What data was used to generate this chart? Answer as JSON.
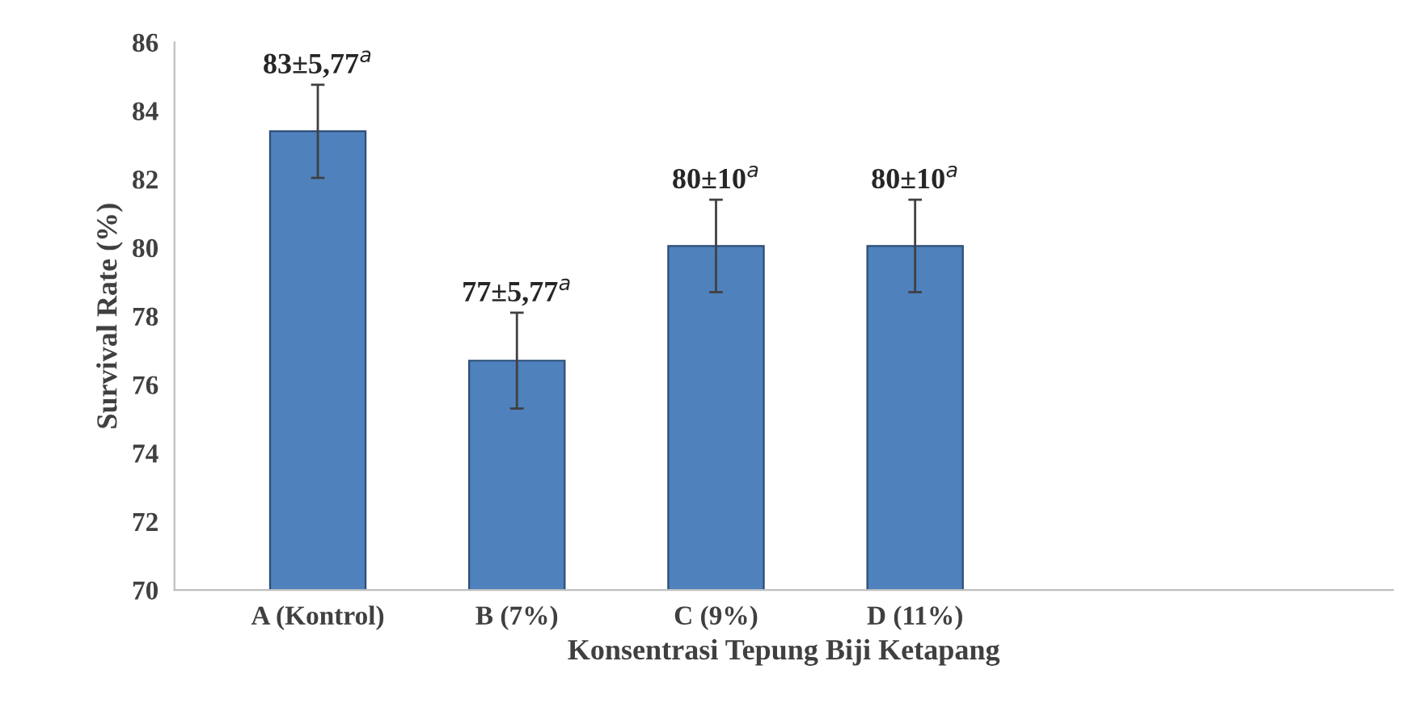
{
  "chart_data": {
    "type": "bar",
    "xlabel": "Konsentrasi Tepung Biji Ketapang",
    "ylabel": "Survival Rate (%)",
    "categories": [
      "A (Kontrol)",
      "B (7%)",
      "C (9%)",
      "D (11%)"
    ],
    "values": [
      83.4,
      76.7,
      80.05,
      80.05
    ],
    "errors": [
      1.36,
      1.4,
      1.35,
      1.35
    ],
    "value_labels": [
      "83±5,77$^{a}$",
      "77±5,77$^{a}$",
      "80±10$^{a}$",
      "80±10$^{a}$"
    ],
    "color": "#4f81bd",
    "ylim": [
      70,
      86
    ],
    "yticks": [
      70,
      72,
      74,
      76,
      78,
      80,
      82,
      84,
      86
    ],
    "grid": false,
    "legend": false
  }
}
